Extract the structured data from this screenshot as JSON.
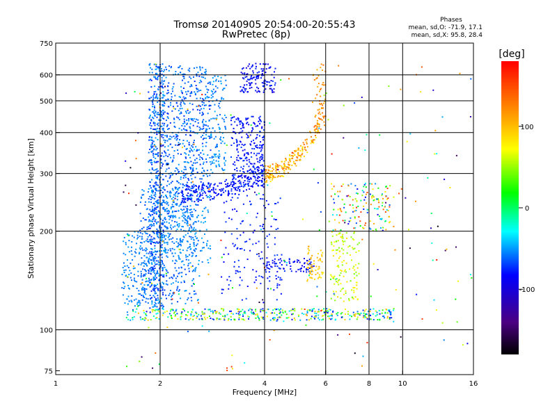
{
  "chart_data": {
    "type": "scatter",
    "title": "Tromsø 20140905 20:54:00-20:55:43",
    "subtitle": "RwPretec (8p)",
    "xlabel": "Frequency [MHz]",
    "ylabel": "Stationary phase Virtual Height [km]",
    "x_scale": "log",
    "y_scale": "log",
    "xlim": [
      1,
      16
    ],
    "ylim": [
      73,
      750
    ],
    "x_ticks": [
      1,
      2,
      4,
      6,
      8,
      10,
      16
    ],
    "x_tick_labels": [
      "1",
      "2",
      "4",
      "6",
      "8",
      "10",
      "16"
    ],
    "x_grid": [
      2,
      4,
      6,
      8,
      10
    ],
    "y_ticks": [
      75,
      100,
      200,
      300,
      400,
      500,
      600,
      750
    ],
    "y_tick_labels": [
      "75",
      "100",
      "200",
      "300",
      "400",
      "500",
      "600",
      "750"
    ],
    "y_grid": [
      100,
      200,
      300,
      400,
      500,
      600
    ],
    "grid": true,
    "stats": {
      "heading": "Phases",
      "line_o": "mean, sd,O: -71.9, 17.1",
      "line_x": "mean, sd,X:  95.8, 28.4"
    },
    "colorbar": {
      "label": "[deg]",
      "range": [
        -180,
        180
      ],
      "ticks": [
        100,
        0,
        -100
      ],
      "tick_labels": [
        "100",
        "0",
        "-100"
      ]
    },
    "clusters": [
      {
        "shape": "rect",
        "f": [
          1.85,
          2.05
        ],
        "h": [
          115,
          650
        ],
        "phase": [
          -95,
          -50
        ],
        "n": 600
      },
      {
        "shape": "rect",
        "f": [
          2.05,
          2.8
        ],
        "h": [
          260,
          640
        ],
        "phase": [
          -90,
          -55
        ],
        "n": 520
      },
      {
        "shape": "rect",
        "f": [
          2.8,
          3.1
        ],
        "h": [
          300,
          600
        ],
        "phase": [
          -75,
          -50
        ],
        "n": 120
      },
      {
        "shape": "rect",
        "f": [
          3.2,
          4.0
        ],
        "h": [
          270,
          450
        ],
        "phase": [
          -110,
          -80
        ],
        "n": 260
      },
      {
        "shape": "rect",
        "f": [
          3.4,
          4.3
        ],
        "h": [
          530,
          650
        ],
        "phase": [
          -115,
          -85
        ],
        "n": 130
      },
      {
        "shape": "rect",
        "f": [
          3.0,
          4.5
        ],
        "h": [
          120,
          260
        ],
        "phase": [
          -105,
          -80
        ],
        "n": 150
      },
      {
        "shape": "rect",
        "f": [
          1.75,
          2.6
        ],
        "h": [
          120,
          270
        ],
        "phase": [
          -85,
          -55
        ],
        "n": 420
      },
      {
        "shape": "rect",
        "f": [
          1.55,
          1.85
        ],
        "h": [
          118,
          200
        ],
        "phase": [
          -75,
          -55
        ],
        "n": 140
      },
      {
        "shape": "rect",
        "f": [
          2.0,
          2.8
        ],
        "h": [
          160,
          260
        ],
        "phase": [
          -70,
          -50
        ],
        "n": 200
      },
      {
        "shape": "curve",
        "f": [
          2.3,
          4.0
        ],
        "h0": 260,
        "h1": 300,
        "phase": [
          -110,
          -85
        ],
        "n": 220
      },
      {
        "shape": "curve",
        "f": [
          4.0,
          5.8
        ],
        "h0": 300,
        "h1": 430,
        "phase": [
          75,
          140
        ],
        "n": 200
      },
      {
        "shape": "rect",
        "f": [
          4.0,
          5.5
        ],
        "h": [
          150,
          165
        ],
        "phase": [
          -110,
          -85
        ],
        "n": 80
      },
      {
        "shape": "rect",
        "f": [
          5.3,
          5.9
        ],
        "h": [
          140,
          180
        ],
        "phase": [
          80,
          110
        ],
        "n": 60
      },
      {
        "shape": "rect",
        "f": [
          5.5,
          6.0
        ],
        "h": [
          400,
          650
        ],
        "phase": [
          100,
          140
        ],
        "n": 60
      },
      {
        "shape": "rect",
        "f": [
          6.2,
          7.5
        ],
        "h": [
          120,
          200
        ],
        "phase": [
          40,
          85
        ],
        "n": 130
      },
      {
        "shape": "rect",
        "f": [
          6.2,
          9.2
        ],
        "h": [
          200,
          280
        ],
        "phase": [
          -110,
          160
        ],
        "n": 150
      },
      {
        "shape": "rect",
        "f": [
          1.6,
          9.5
        ],
        "h": [
          107,
          116
        ],
        "phase": [
          -110,
          100
        ],
        "n": 420
      },
      {
        "shape": "rect",
        "f": [
          1.55,
          16
        ],
        "h": [
          75,
          650
        ],
        "phase": [
          -180,
          180
        ],
        "n": 220
      }
    ]
  }
}
